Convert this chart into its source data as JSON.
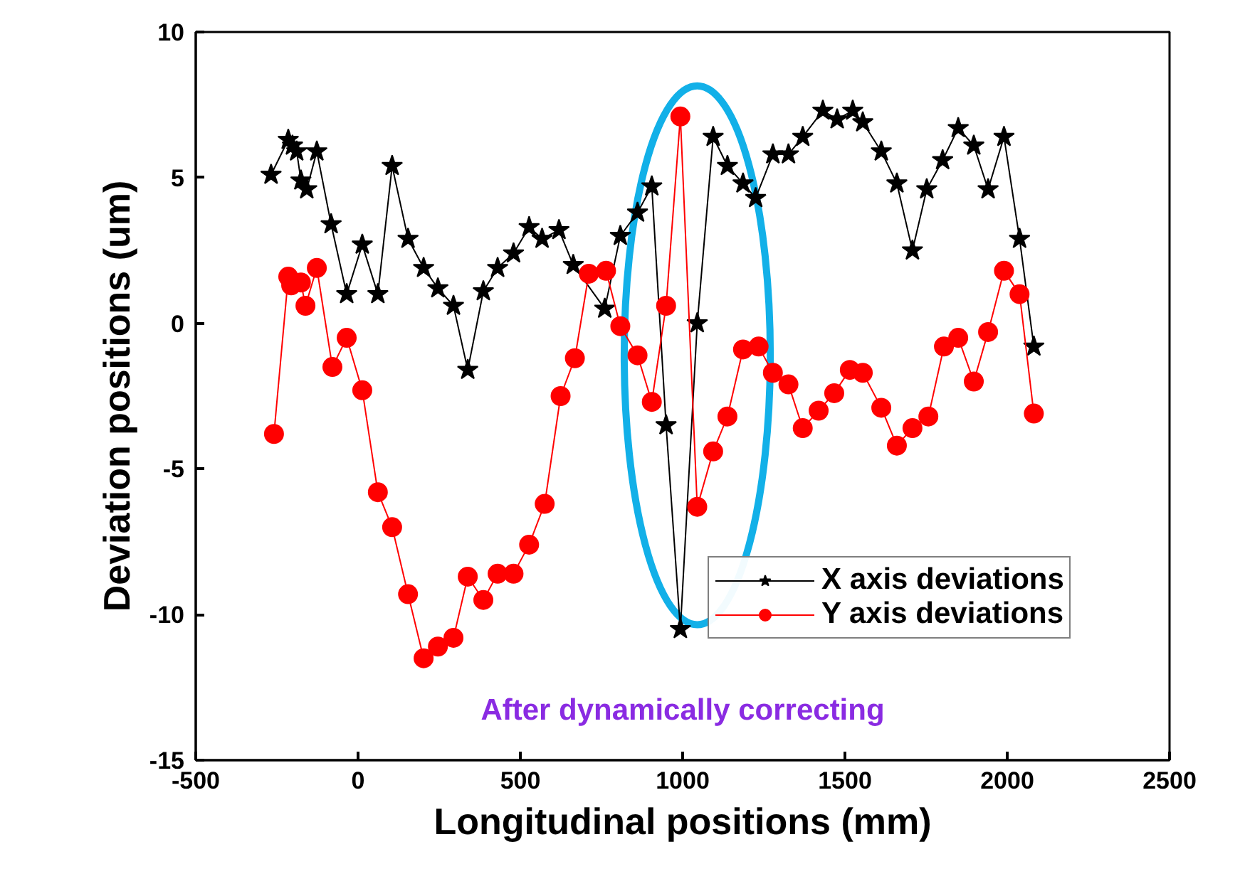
{
  "chart_data": {
    "type": "line",
    "xlabel": "Longitudinal positions (mm)",
    "ylabel": "Deviation positions (um)",
    "xlim": [
      -500,
      2500
    ],
    "xticks": [
      -500,
      0,
      500,
      1000,
      1500,
      2000,
      2500
    ],
    "ylim": [
      -15,
      10
    ],
    "yticks": [
      -15,
      -10,
      -5,
      0,
      5,
      10
    ],
    "grid": false,
    "legend": "right",
    "annotations": [
      "After dynamically correcting"
    ],
    "series": [
      {
        "name": "X axis deviations",
        "color": "#000000",
        "marker": "star",
        "x": [
          -268,
          -215,
          -202,
          -189,
          -176,
          -158,
          -127,
          -83,
          -35,
          13,
          61,
          105,
          154,
          202,
          246,
          294,
          338,
          386,
          430,
          479,
          527,
          567,
          619,
          663,
          760,
          808,
          861,
          905,
          949,
          993,
          1045,
          1094,
          1138,
          1186,
          1225,
          1278,
          1326,
          1370,
          1432,
          1476,
          1524,
          1555,
          1612,
          1660,
          1708,
          1752,
          1801,
          1849,
          1897,
          1941,
          1990,
          2038,
          2082
        ],
        "values": [
          5.1,
          6.3,
          6.1,
          5.9,
          4.9,
          4.6,
          5.9,
          3.4,
          1.0,
          2.7,
          1.0,
          5.4,
          2.9,
          1.9,
          1.2,
          0.6,
          -1.6,
          1.1,
          1.9,
          2.4,
          3.3,
          2.9,
          3.2,
          2.0,
          0.5,
          3.0,
          3.8,
          4.7,
          -3.5,
          -10.5,
          0.0,
          6.4,
          5.4,
          4.8,
          4.3,
          5.8,
          5.8,
          6.4,
          7.3,
          7.0,
          7.3,
          6.9,
          5.9,
          4.8,
          2.5,
          4.6,
          5.6,
          6.7,
          6.1,
          4.6,
          6.4,
          2.9,
          -0.8
        ]
      },
      {
        "name": "Y axis deviations",
        "color": "#ff0000",
        "marker": "circle",
        "x": [
          -259,
          -215,
          -206,
          -176,
          -162,
          -127,
          -79,
          -35,
          13,
          61,
          105,
          154,
          202,
          246,
          294,
          338,
          386,
          430,
          479,
          527,
          575,
          624,
          668,
          711,
          764,
          808,
          861,
          905,
          949,
          993,
          1045,
          1094,
          1138,
          1186,
          1234,
          1278,
          1326,
          1370,
          1419,
          1467,
          1515,
          1555,
          1612,
          1660,
          1708,
          1757,
          1805,
          1849,
          1897,
          1941,
          1990,
          2038,
          2082
        ],
        "values": [
          -3.8,
          1.6,
          1.3,
          1.4,
          0.6,
          1.9,
          -1.5,
          -0.5,
          -2.3,
          -5.8,
          -7.0,
          -9.3,
          -11.5,
          -11.1,
          -10.8,
          -8.7,
          -9.5,
          -8.6,
          -8.6,
          -7.6,
          -6.2,
          -2.5,
          -1.2,
          1.7,
          1.8,
          -0.1,
          -1.1,
          -2.7,
          0.6,
          7.1,
          -6.3,
          -4.4,
          -3.2,
          -0.9,
          -0.8,
          -1.7,
          -2.1,
          -3.6,
          -3.0,
          -2.4,
          -1.6,
          -1.7,
          -2.9,
          -4.2,
          -3.6,
          -3.2,
          -0.8,
          -0.5,
          -2.0,
          -0.3,
          1.8,
          1.0,
          -3.1
        ]
      }
    ]
  }
}
